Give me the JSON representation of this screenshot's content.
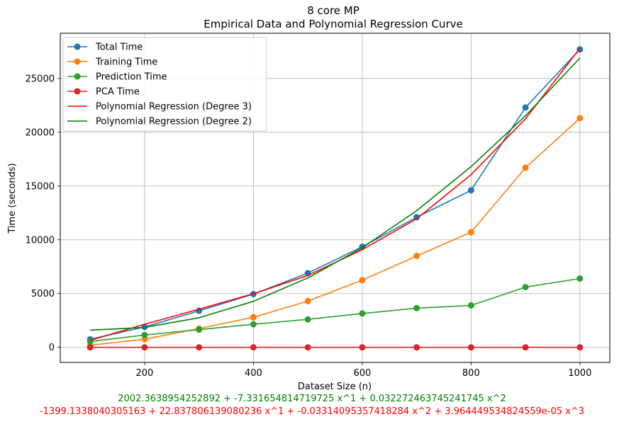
{
  "chart_data": {
    "type": "line",
    "title": "8 core MP",
    "subtitle": "Empirical Data and Polynomial Regression Curve",
    "xlabel": "Dataset Size (n)",
    "ylabel": "Time (seconds)",
    "xlim": [
      45,
      1055
    ],
    "ylim": [
      -1400,
      29200
    ],
    "xticks": [
      200,
      400,
      600,
      800,
      1000
    ],
    "yticks": [
      0,
      5000,
      10000,
      15000,
      20000,
      25000
    ],
    "grid": true,
    "legend_position": "top-left",
    "x": [
      100,
      200,
      300,
      400,
      500,
      600,
      700,
      800,
      900,
      1000
    ],
    "series": [
      {
        "name": "Total Time",
        "color": "#1f77b4",
        "marker": "circle",
        "values": [
          750,
          1900,
          3400,
          4950,
          6900,
          9350,
          12100,
          14600,
          22300,
          27700
        ]
      },
      {
        "name": "Training Time",
        "color": "#ff7f0e",
        "marker": "circle",
        "values": [
          200,
          750,
          1750,
          2800,
          4300,
          6250,
          8500,
          10700,
          16700,
          21300
        ]
      },
      {
        "name": "Prediction Time",
        "color": "#2ca02c",
        "marker": "circle",
        "values": [
          550,
          1150,
          1650,
          2150,
          2600,
          3150,
          3650,
          3900,
          5600,
          6400
        ]
      },
      {
        "name": "PCA Time",
        "color": "#d62728",
        "marker": "circle",
        "values": [
          0,
          0,
          0,
          0,
          0,
          0,
          0,
          0,
          0,
          0
        ]
      },
      {
        "name": "Polynomial Regression (Degree 3)",
        "color": "#ff0000",
        "marker": "none",
        "values": [
          650,
          2150,
          3550,
          4980,
          6680,
          9080,
          11950,
          16050,
          21250,
          27800
        ]
      },
      {
        "name": "Polynomial Regression (Degree 2)",
        "color": "#008000",
        "marker": "none",
        "values": [
          1600,
          1850,
          2750,
          4280,
          6450,
          9260,
          12710,
          16800,
          21530,
          26900
        ]
      }
    ]
  },
  "equations": {
    "degree2": "2002.3638954252892 + -7.331654814719725 x^1 + 0.032272463745241745 x^2",
    "degree3": "-1399.1338040305163 + 22.837806139080236 x^1 + -0.03314095357418284 x^2 + 3.964449534824559e-05 x^3",
    "degree2_color": "#008000",
    "degree3_color": "#ff0000"
  }
}
